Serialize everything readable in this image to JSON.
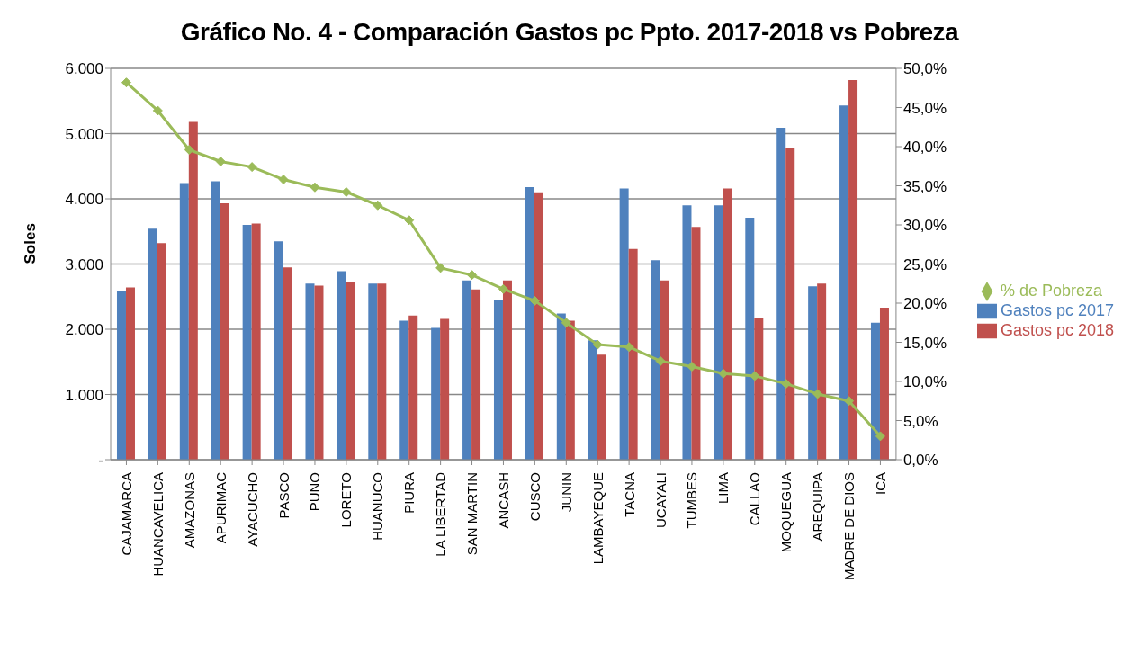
{
  "chart_data": {
    "type": "bar",
    "title": "Gráfico No. 4 - Comparación Gastos pc Ppto. 2017-2018 vs Pobreza",
    "ylabel": "Soles",
    "categories": [
      "CAJAMARCA",
      "HUANCAVELICA",
      "AMAZONAS",
      "APURIMAC",
      "AYACUCHO",
      "PASCO",
      "PUNO",
      "LORETO",
      "HUANUCO",
      "PIURA",
      "LA LIBERTAD",
      "SAN MARTIN",
      "ANCASH",
      "CUSCO",
      "JUNIN",
      "LAMBAYEQUE",
      "TACNA",
      "UCAYALI",
      "TUMBES",
      "LIMA",
      "CALLAO",
      "MOQUEGUA",
      "AREQUIPA",
      "MADRE DE DIOS",
      "ICA"
    ],
    "series": [
      {
        "name": "Gastos  pc 2017",
        "color": "#4f81bd",
        "values": [
          2590,
          3540,
          4240,
          4270,
          3600,
          3350,
          2700,
          2890,
          2700,
          2130,
          2020,
          2750,
          2440,
          4180,
          2240,
          1830,
          4160,
          3060,
          3900,
          3900,
          3710,
          5090,
          2660,
          5430,
          2100
        ]
      },
      {
        "name": "Gastos  pc 2018",
        "color": "#c0504d",
        "values": [
          2640,
          3320,
          5180,
          3930,
          3620,
          2950,
          2670,
          2720,
          2700,
          2210,
          2160,
          2610,
          2750,
          4100,
          2130,
          1610,
          3230,
          2750,
          3570,
          4160,
          2170,
          4780,
          2700,
          5820,
          2330
        ]
      },
      {
        "name": "% de Pobreza",
        "type": "line",
        "axis": "y2",
        "color": "#9bbb59",
        "marker": "diamond",
        "values": [
          48.2,
          44.6,
          39.6,
          38.1,
          37.4,
          35.8,
          34.8,
          34.2,
          32.5,
          30.6,
          24.5,
          23.6,
          21.8,
          20.3,
          17.5,
          14.7,
          14.4,
          12.6,
          11.9,
          11.0,
          10.7,
          9.7,
          8.4,
          7.5,
          3.0
        ]
      }
    ],
    "ylim": [
      0,
      6000
    ],
    "yticks": [
      {
        "value": 0,
        "label": "-"
      },
      {
        "value": 1000,
        "label": "1.000"
      },
      {
        "value": 2000,
        "label": "2.000"
      },
      {
        "value": 3000,
        "label": "3.000"
      },
      {
        "value": 4000,
        "label": "4.000"
      },
      {
        "value": 5000,
        "label": "5.000"
      },
      {
        "value": 6000,
        "label": "6.000"
      }
    ],
    "y2lim": [
      0,
      50
    ],
    "y2ticks": [
      {
        "value": 0,
        "label": "0,0%"
      },
      {
        "value": 5,
        "label": "5,0%"
      },
      {
        "value": 10,
        "label": "10,0%"
      },
      {
        "value": 15,
        "label": "15,0%"
      },
      {
        "value": 20,
        "label": "20,0%"
      },
      {
        "value": 25,
        "label": "25,0%"
      },
      {
        "value": 30,
        "label": "30,0%"
      },
      {
        "value": 35,
        "label": "35,0%"
      },
      {
        "value": 40,
        "label": "40,0%"
      },
      {
        "value": 45,
        "label": "45,0%"
      },
      {
        "value": 50,
        "label": "50,0%"
      }
    ],
    "grid": "y",
    "legend": "right"
  }
}
